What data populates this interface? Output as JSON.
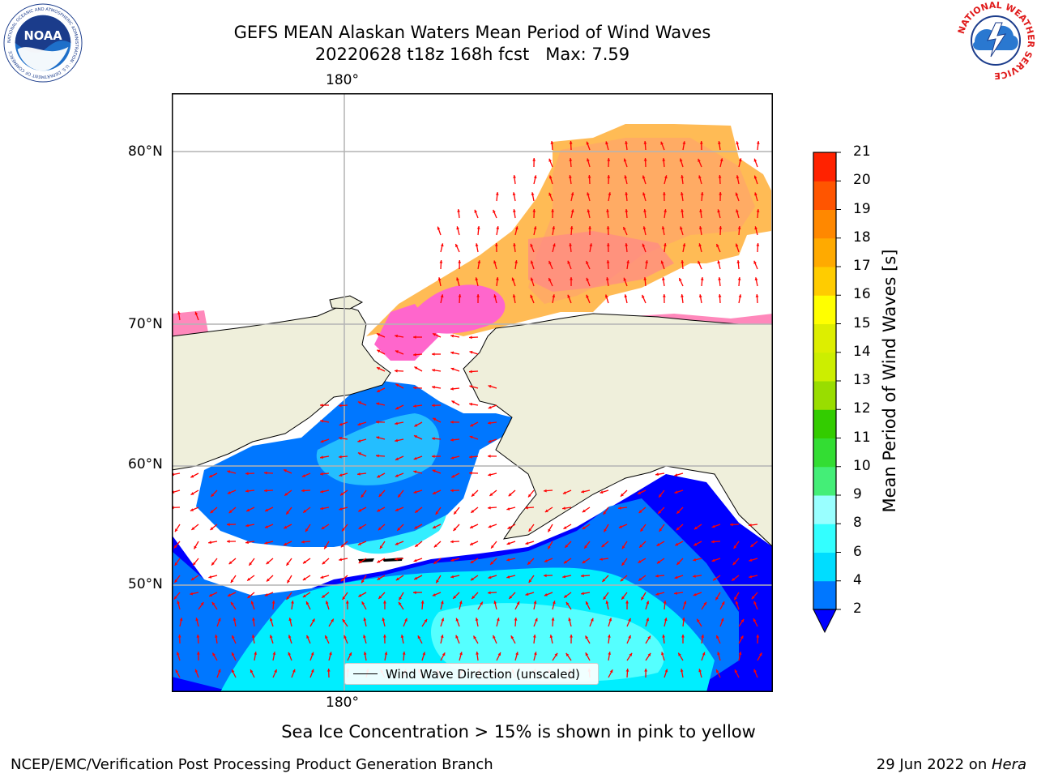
{
  "header": {
    "title_line1": "GEFS MEAN Alaskan Waters Mean Period of Wind Waves",
    "title_line2": "20220628 t18z 168h fcst   Max: 7.59"
  },
  "logos": {
    "noaa": {
      "text": "NOAA",
      "ring_text": "NATIONAL OCEANIC AND ATMOSPHERIC ADMINISTRATION · U.S. DEPARTMENT OF COMMERCE"
    },
    "nws": {
      "ring_text": "NATIONAL WEATHER SERVICE"
    }
  },
  "map": {
    "lon_label_top": "180°",
    "lon_label_bottom": "180°",
    "lat_labels": {
      "lat80": "80°N",
      "lat70": "70°N",
      "lat60": "60°N",
      "lat50": "50°N"
    },
    "land_color": "#efefdb",
    "legend_text": "Wind Wave Direction (unscaled)",
    "arrow_color": "#ff0000"
  },
  "colorbar": {
    "ticks": [
      "2",
      "4",
      "6",
      "8",
      "9",
      "10",
      "11",
      "12",
      "13",
      "14",
      "15",
      "16",
      "17",
      "18",
      "19",
      "20",
      "21"
    ],
    "colors": [
      "#0000ff",
      "#0077ff",
      "#00ddff",
      "#33ffff",
      "#99ffff",
      "#44ee77",
      "#33dd33",
      "#33cc00",
      "#99dd00",
      "#ccee00",
      "#ddee00",
      "#ffff00",
      "#ffcc00",
      "#ffaa00",
      "#ff8800",
      "#ff5500",
      "#ff2200",
      "#ff0000"
    ],
    "label": "Mean Period of Wind Waves [s]"
  },
  "notes": {
    "sea_ice": "Sea Ice Concentration > 15% is shown in pink to yellow"
  },
  "footer": {
    "left": "NCEP/EMC/Verification Post Processing Product Generation Branch",
    "right_prefix": "29 Jun 2022 on ",
    "right_machine": "Hera"
  }
}
